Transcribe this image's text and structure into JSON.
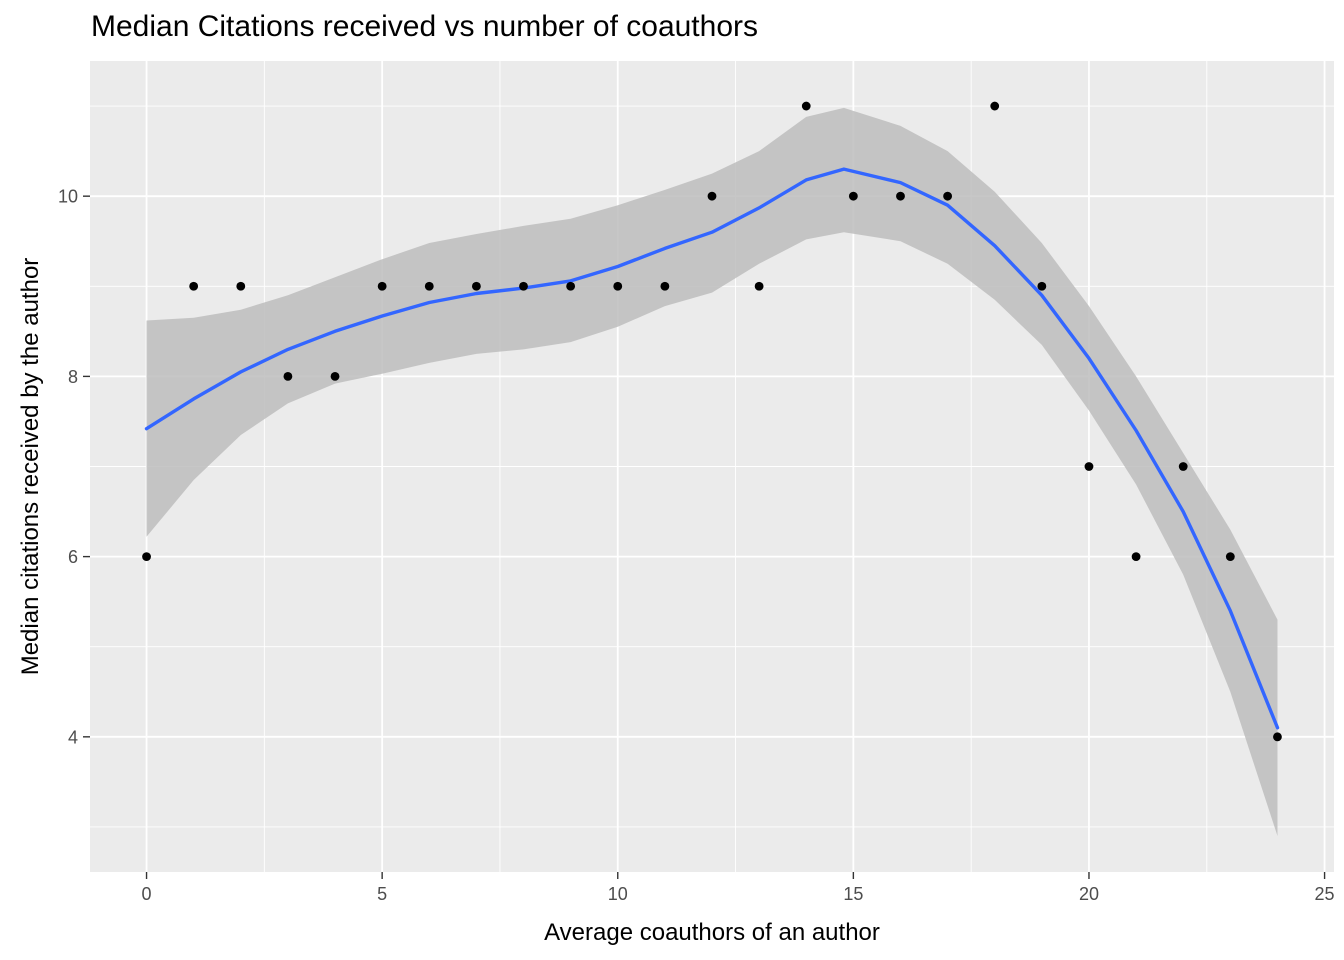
{
  "chart_data": {
    "type": "scatter",
    "title": "Median Citations received vs number of coauthors",
    "xlabel": "Average coauthors of an author",
    "ylabel": "Median citations received by the author",
    "xlim": [
      -1.2,
      25.2
    ],
    "ylim": [
      2.5,
      11.5
    ],
    "xticks": [
      0,
      5,
      10,
      15,
      20,
      25
    ],
    "yticks": [
      4,
      6,
      8,
      10
    ],
    "xtick_labels": [
      "0",
      "5",
      "10",
      "15",
      "20",
      "25"
    ],
    "ytick_labels": [
      "4",
      "6",
      "8",
      "10"
    ],
    "grid": true,
    "colors": {
      "panel_background": "#ebebeb",
      "grid": "#ffffff",
      "points": "#000000",
      "smooth_line": "#3366ff",
      "confidence_band": "#bdbdbd"
    },
    "points": {
      "x": [
        0,
        1,
        2,
        3,
        4,
        5,
        6,
        7,
        8,
        9,
        10,
        11,
        12,
        13,
        14,
        15,
        16,
        17,
        18,
        19,
        20,
        21,
        22,
        23,
        24
      ],
      "y": [
        6,
        9,
        9,
        8,
        8,
        9,
        9,
        9,
        9,
        9,
        9,
        9,
        10,
        9,
        11,
        10,
        10,
        10,
        11,
        9,
        7,
        6,
        7,
        6,
        4
      ]
    },
    "smooth": {
      "x": [
        0,
        1,
        2,
        3,
        4,
        5,
        6,
        7,
        8,
        9,
        10,
        11,
        12,
        13,
        14,
        14.8,
        16,
        17,
        18,
        19,
        20,
        21,
        22,
        23,
        24
      ],
      "y": [
        7.42,
        7.75,
        8.05,
        8.3,
        8.5,
        8.67,
        8.82,
        8.92,
        8.98,
        9.06,
        9.22,
        9.42,
        9.6,
        9.87,
        10.18,
        10.3,
        10.15,
        9.9,
        9.45,
        8.9,
        8.2,
        7.4,
        6.5,
        5.4,
        4.1
      ],
      "lower": [
        6.22,
        6.85,
        7.35,
        7.7,
        7.92,
        8.03,
        8.15,
        8.25,
        8.3,
        8.38,
        8.55,
        8.78,
        8.93,
        9.25,
        9.52,
        9.6,
        9.5,
        9.25,
        8.85,
        8.35,
        7.62,
        6.8,
        5.8,
        4.5,
        2.9
      ],
      "upper": [
        8.62,
        8.65,
        8.74,
        8.9,
        9.1,
        9.3,
        9.48,
        9.58,
        9.67,
        9.75,
        9.9,
        10.07,
        10.25,
        10.5,
        10.88,
        10.98,
        10.78,
        10.5,
        10.05,
        9.48,
        8.78,
        8.0,
        7.15,
        6.3,
        5.3
      ]
    }
  }
}
